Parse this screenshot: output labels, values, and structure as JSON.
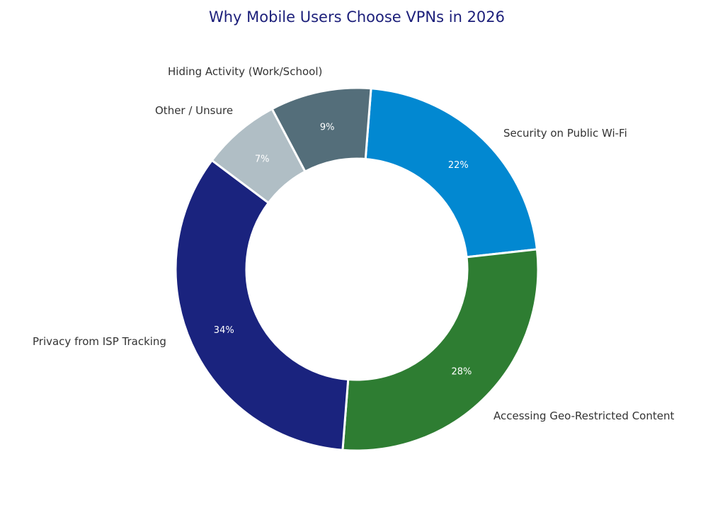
{
  "chart_data": {
    "type": "pie",
    "donut": true,
    "title": "Why Mobile Users Choose VPNs in 2026",
    "slices": [
      {
        "label": "Security on Public Wi-Fi",
        "value": 22,
        "value_label": "22%",
        "color": "#0288d1"
      },
      {
        "label": "Accessing Geo-Restricted Content",
        "value": 28,
        "value_label": "28%",
        "color": "#2e7d32"
      },
      {
        "label": "Privacy from ISP Tracking",
        "value": 34,
        "value_label": "34%",
        "color": "#1a237e"
      },
      {
        "label": "Other / Unsure",
        "value": 7,
        "value_label": "7%",
        "color": "#b0bec5"
      },
      {
        "label": "Hiding Activity (Work/School)",
        "value": 9,
        "value_label": "9%",
        "color": "#546e7a"
      }
    ],
    "legend": "none",
    "colors": {
      "title": "#1c1f7a",
      "label_text": "#333333",
      "value_text": "#ffffff",
      "background": "#ffffff"
    }
  }
}
